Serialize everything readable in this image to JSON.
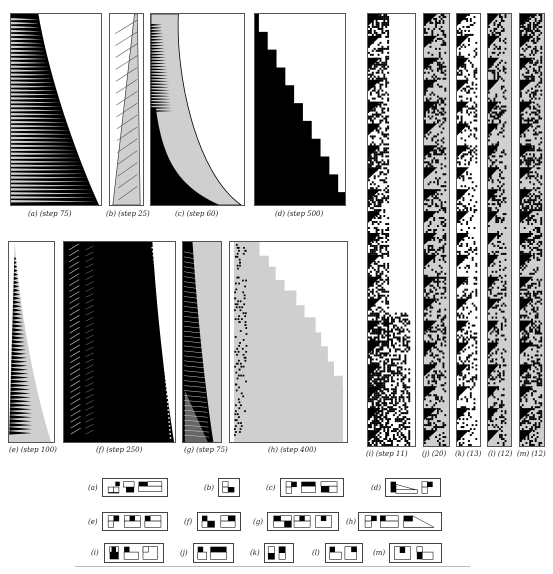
{
  "figure": {
    "panels": {
      "a": {
        "caption": "(a) (step 75)"
      },
      "b": {
        "caption": "(b) (step 25)"
      },
      "c": {
        "caption": "(c) (step 60)"
      },
      "d": {
        "caption": "(d) (step 500)"
      },
      "e": {
        "caption": "(e) (step 100)"
      },
      "f": {
        "caption": "(f) (step 250)"
      },
      "g": {
        "caption": "(g) (step 75)"
      },
      "h": {
        "caption": "(h) (step 400)"
      },
      "i": {
        "caption": "(i) (step 11)"
      },
      "j": {
        "caption": "(j) (20)"
      },
      "k": {
        "caption": "(k) (13)"
      },
      "l": {
        "caption": "(l) (12)"
      },
      "m": {
        "caption": "(m) (12)"
      }
    },
    "rules": {
      "a": {
        "label": "(a)"
      },
      "b": {
        "label": "(b)"
      },
      "c": {
        "label": "(c)"
      },
      "d": {
        "label": "(d)"
      },
      "e": {
        "label": "(e)"
      },
      "f": {
        "label": "(f)"
      },
      "g": {
        "label": "(g)"
      },
      "h": {
        "label": "(h)"
      },
      "i": {
        "label": "(i)"
      },
      "j": {
        "label": "(j)"
      },
      "k": {
        "label": "(k)"
      },
      "l": {
        "label": "(l)"
      },
      "m": {
        "label": "(m)"
      }
    },
    "colors": {
      "black": "#000000",
      "gray": "#cfcfcf",
      "white": "#ffffff",
      "frame": "#555555"
    }
  }
}
